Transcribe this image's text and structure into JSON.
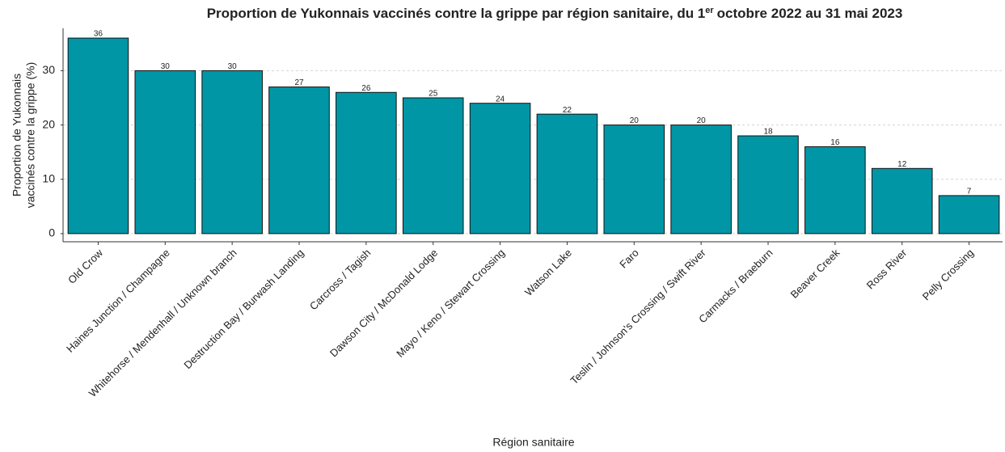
{
  "chart_data": {
    "type": "bar",
    "title": [
      "Proportion de Yukonnais vaccinés contre la grippe par région sanitaire, du 1",
      "er",
      "octobre 2022 au 31 mai 2023"
    ],
    "x_label": "Région sanitaire",
    "y_label": [
      "Proportion de Yukonnais",
      "vaccinés contre la grippe (%)"
    ],
    "categories": [
      "Old Crow",
      "Haines Junction / Champagne",
      "Whitehorse / Mendenhall / Unknown branch",
      "Destruction Bay / Burwash Landing",
      "Carcross / Tagish",
      "Dawson City / McDonald Lodge",
      "Mayo / Keno / Stewart Crossing",
      "Watson Lake",
      "Faro",
      "Teslin / Johnson's Crossing / Swift River",
      "Carmacks / Braeburn",
      "Beaver Creek",
      "Ross River",
      "Pelly Crossing"
    ],
    "values": [
      36,
      30,
      30,
      27,
      26,
      25,
      24,
      22,
      20,
      20,
      18,
      16,
      12,
      7
    ],
    "color": "#0096a6",
    "ylim": [
      -1.5,
      37.8
    ],
    "yticks": [
      0,
      10,
      20,
      30
    ],
    "grid": true
  }
}
